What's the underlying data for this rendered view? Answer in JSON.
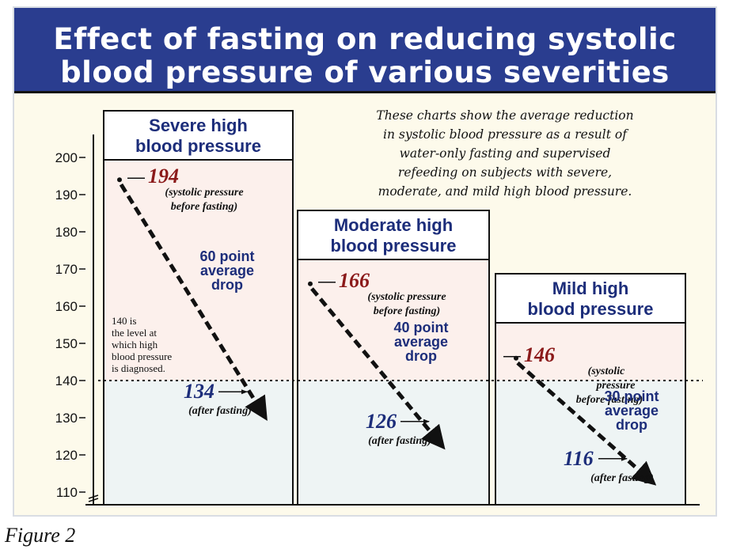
{
  "chart_data": {
    "type": "bar",
    "title": "Effect of fasting on reducing systolic blood pressure of various severities",
    "title_lines": [
      "Effect of fasting on reducing systolic",
      "blood pressure of various severities"
    ],
    "description_lines": [
      "These charts show the average reduction",
      "in systolic blood pressure as a result of",
      "water-only fasting and supervised",
      "refeeding on subjects with severe,",
      "moderate, and mild high blood pressure."
    ],
    "ylim": [
      108,
      200
    ],
    "yticks": [
      "200",
      "190",
      "180",
      "170",
      "160",
      "150",
      "140",
      "130",
      "120",
      "110"
    ],
    "grid": false,
    "threshold": {
      "value": 140,
      "label_lines": [
        "140 is",
        "the level at",
        "which high",
        "blood pressure",
        "is diagnosed."
      ]
    },
    "groups": [
      {
        "name_lines": [
          "Severe high",
          "blood pressure"
        ],
        "before": 194,
        "after": 134,
        "before_label": "194",
        "before_note": [
          "(systolic pressure",
          "before fasting)"
        ],
        "after_label": "134",
        "after_note": "(after fasting)",
        "drop_label": [
          "60 point",
          "average",
          "drop"
        ]
      },
      {
        "name_lines": [
          "Moderate high",
          "blood pressure"
        ],
        "before": 166,
        "after": 126,
        "before_label": "166",
        "before_note": [
          "(systolic pressure",
          "before fasting)"
        ],
        "after_label": "126",
        "after_note": "(after fasting)",
        "drop_label": [
          "40 point",
          "average",
          "drop"
        ]
      },
      {
        "name_lines": [
          "Mild high",
          "blood pressure"
        ],
        "before": 146,
        "after": 116,
        "before_label": "146",
        "before_note": [
          "(systolic",
          "pressure",
          "before fasting)"
        ],
        "after_label": "116",
        "after_note": "(after fasting)",
        "drop_label": [
          "30 point",
          "average",
          "drop"
        ]
      }
    ],
    "colors": {
      "title_bg": "#2a3d8f",
      "panel_bg": "#fdfaeb",
      "above_threshold": "#fcf0ec",
      "below_threshold": "#eef4f4",
      "before_value": "#8b1a1a",
      "after_value": "#1c2d7a"
    }
  },
  "caption": "Figure 2"
}
